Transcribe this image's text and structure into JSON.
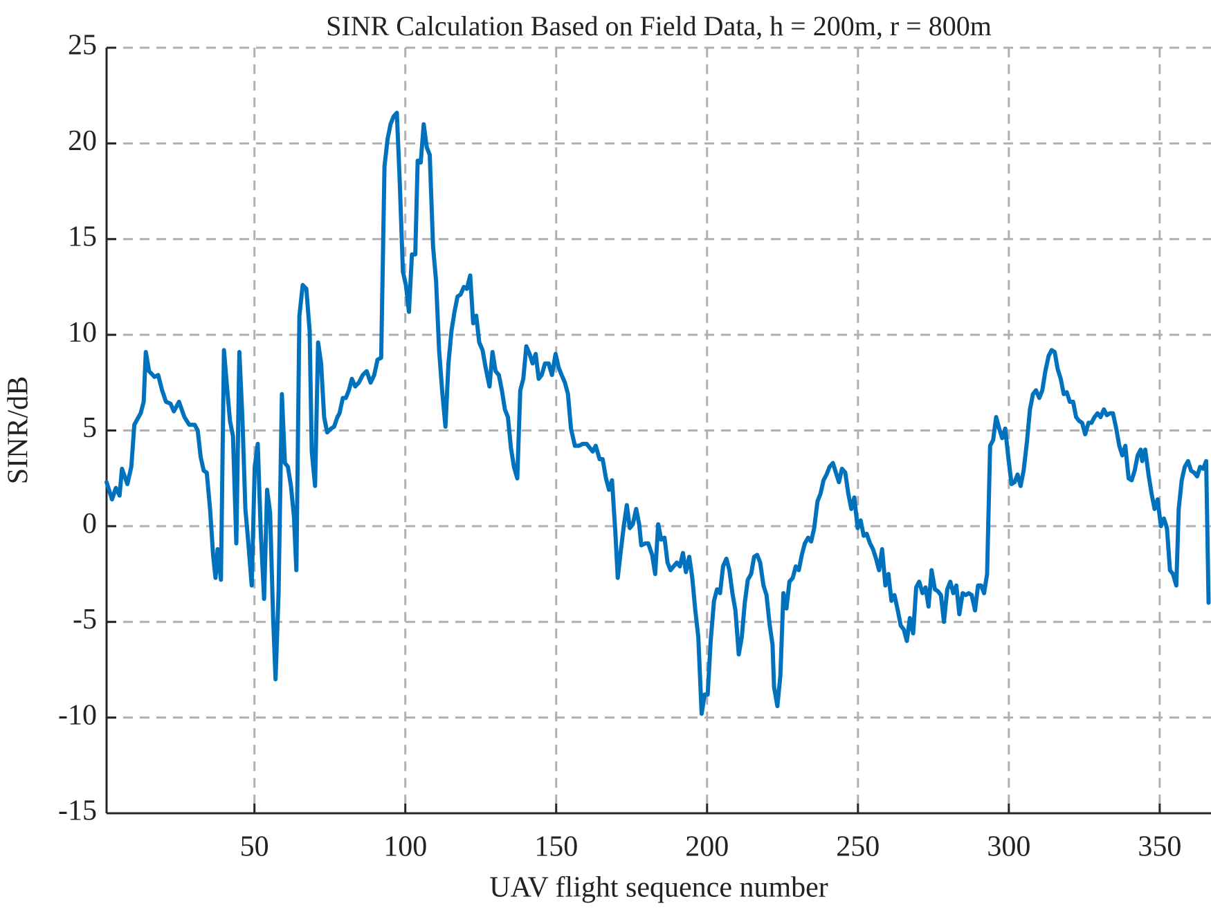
{
  "chart_data": {
    "type": "line",
    "title": "SINR Calculation Based on Field Data, h = 200m, r = 800m",
    "x_label": "UAV flight sequence number",
    "y_label": "SINR/dB",
    "color": "#0072bd",
    "grid": true,
    "xlim": [
      1,
      367
    ],
    "ylim": [
      -15,
      25
    ],
    "xticks": [
      50,
      100,
      150,
      200,
      250,
      300,
      350
    ],
    "yticks": [
      -15,
      -10,
      -5,
      0,
      5,
      10,
      15,
      20,
      25
    ],
    "x": [
      1,
      2.8,
      4.1,
      5.3,
      6.1,
      7.9,
      9.2,
      10.2,
      12.3,
      13.3,
      14.0,
      15.1,
      16.9,
      18.1,
      19.4,
      20.7,
      22.2,
      23.3,
      25.0,
      26.8,
      28.4,
      30.2,
      31.2,
      32.2,
      33.2,
      34.2,
      35.3,
      36.3,
      37.1,
      37.8,
      38.9,
      39.9,
      40.9,
      41.9,
      42.9,
      44.0,
      45.0,
      46.0,
      47.0,
      48.1,
      49.1,
      50.1,
      51.1,
      52.1,
      53.2,
      54.2,
      55.2,
      56.2,
      57.0,
      58.0,
      59.1,
      60.1,
      61.1,
      62.1,
      63.1,
      63.9,
      64.9,
      66.0,
      67.2,
      68.3,
      69.0,
      70.1,
      71.1,
      72.1,
      73.1,
      74.1,
      75.4,
      76.4,
      77.5,
      78.2,
      79.3,
      80.3,
      81.3,
      82.3,
      83.4,
      84.6,
      85.9,
      87.2,
      88.5,
      89.7,
      90.8,
      92.0,
      93.1,
      94.1,
      95.1,
      96.1,
      97.2,
      98.2,
      99.2,
      100.2,
      101.2,
      102.2,
      103.3,
      104.1,
      105.1,
      106.1,
      107.1,
      108.1,
      109.2,
      110.2,
      111.2,
      112.2,
      113.3,
      114.3,
      115.3,
      116.3,
      117.3,
      118.3,
      119.4,
      120.4,
      121.5,
      122.5,
      123.5,
      124.5,
      125.6,
      126.6,
      127.9,
      128.9,
      129.9,
      131.0,
      132.0,
      133.0,
      134.0,
      135.0,
      136.0,
      137.1,
      138.1,
      139.1,
      140.1,
      141.2,
      142.2,
      143.2,
      144.2,
      145.2,
      146.3,
      147.5,
      148.6,
      149.8,
      150.8,
      151.8,
      152.9,
      153.9,
      154.9,
      156.2,
      157.5,
      158.8,
      160.1,
      161.1,
      162.1,
      163.1,
      164.4,
      165.4,
      166.5,
      167.5,
      168.5,
      169.6,
      170.4,
      171.4,
      172.4,
      173.4,
      174.4,
      175.4,
      176.5,
      177.5,
      178.2,
      179.5,
      180.5,
      181.8,
      182.8,
      183.8,
      184.8,
      185.9,
      186.9,
      187.9,
      188.9,
      190.0,
      191.0,
      192.0,
      193.0,
      194.1,
      195.1,
      196.1,
      197.1,
      198.2,
      199.2,
      200.2,
      201.2,
      202.3,
      203.3,
      204.3,
      205.3,
      206.4,
      207.4,
      208.4,
      209.4,
      210.5,
      211.5,
      212.5,
      213.5,
      214.6,
      215.6,
      216.6,
      217.6,
      218.7,
      219.7,
      220.7,
      221.7,
      222.2,
      223.3,
      224.3,
      225.3,
      226.3,
      227.3,
      228.4,
      229.4,
      230.4,
      231.4,
      232.4,
      233.5,
      234.5,
      235.5,
      236.6,
      237.6,
      238.6,
      239.6,
      240.6,
      241.7,
      242.7,
      243.7,
      244.7,
      245.8,
      246.8,
      247.8,
      248.8,
      249.9,
      250.9,
      251.9,
      252.9,
      254.0,
      255.0,
      256.0,
      257.0,
      258.0,
      259.1,
      260.1,
      261.1,
      262.1,
      263.2,
      264.2,
      265.2,
      266.2,
      267.2,
      268.3,
      269.3,
      270.3,
      271.4,
      272.4,
      273.4,
      274.4,
      275.5,
      276.5,
      277.5,
      278.5,
      279.6,
      280.6,
      281.6,
      282.6,
      283.6,
      284.7,
      285.7,
      286.7,
      287.7,
      288.8,
      289.8,
      290.8,
      291.8,
      292.8,
      293.8,
      294.8,
      295.8,
      296.8,
      297.8,
      298.8,
      299.9,
      300.9,
      301.9,
      302.9,
      303.9,
      304.9,
      306.0,
      307.0,
      308.0,
      309.0,
      310.1,
      311.1,
      312.1,
      313.2,
      314.2,
      315.2,
      316.2,
      317.2,
      318.2,
      319.2,
      320.2,
      321.3,
      322.3,
      323.3,
      324.3,
      325.3,
      326.4,
      327.4,
      328.4,
      329.4,
      330.4,
      331.5,
      332.5,
      333.5,
      334.5,
      335.6,
      336.6,
      337.6,
      338.6,
      339.7,
      340.7,
      341.7,
      342.7,
      343.7,
      344.2,
      345.2,
      346.3,
      347.3,
      348.3,
      349.3,
      350.4,
      351.4,
      352.4,
      353.4,
      354.4,
      355.5,
      356.3,
      357.3,
      358.3,
      359.4,
      360.4,
      361.4,
      362.4,
      363.4,
      364.4,
      365.4,
      366.2
    ],
    "values": [
      2.3,
      1.4,
      2.0,
      1.6,
      3.0,
      2.2,
      3.1,
      5.3,
      5.9,
      6.5,
      9.1,
      8.1,
      7.8,
      7.9,
      7.1,
      6.5,
      6.4,
      6.0,
      6.5,
      5.7,
      5.3,
      5.3,
      5.0,
      3.6,
      2.9,
      2.8,
      0.9,
      -1.5,
      -2.7,
      -1.2,
      -2.8,
      9.2,
      7.3,
      5.5,
      4.7,
      -0.9,
      9.1,
      5.7,
      0.9,
      -1.1,
      -3.1,
      3.1,
      4.3,
      -0.3,
      -3.8,
      1.9,
      0.7,
      -4.8,
      -8.0,
      -3.5,
      6.9,
      3.3,
      3.1,
      2.1,
      0.5,
      -2.3,
      11.0,
      12.6,
      12.4,
      10.2,
      3.9,
      2.1,
      9.6,
      8.5,
      5.7,
      4.9,
      5.1,
      5.2,
      5.7,
      5.9,
      6.7,
      6.7,
      7.1,
      7.7,
      7.3,
      7.5,
      7.9,
      8.1,
      7.5,
      7.9,
      8.7,
      8.8,
      18.8,
      20.2,
      21.0,
      21.4,
      21.6,
      17.8,
      13.3,
      12.6,
      11.2,
      14.2,
      14.2,
      19.1,
      19.0,
      21.0,
      19.8,
      19.4,
      14.6,
      12.8,
      9.2,
      7.1,
      5.2,
      8.5,
      10.2,
      11.2,
      12.0,
      12.1,
      12.5,
      12.4,
      13.1,
      10.6,
      11.0,
      9.6,
      9.2,
      8.3,
      7.3,
      9.1,
      8.1,
      7.9,
      7.1,
      6.1,
      5.7,
      4.1,
      3.1,
      2.5,
      7.1,
      7.7,
      9.4,
      9.0,
      8.5,
      9.0,
      7.7,
      7.9,
      8.5,
      8.5,
      7.9,
      9.0,
      8.3,
      7.9,
      7.5,
      6.9,
      5.1,
      4.2,
      4.2,
      4.3,
      4.3,
      4.1,
      3.9,
      4.2,
      3.5,
      3.5,
      2.5,
      1.9,
      2.4,
      -0.3,
      -2.7,
      -1.3,
      0.0,
      1.1,
      -0.1,
      0.1,
      0.9,
      0.1,
      -1.0,
      -0.9,
      -0.9,
      -1.5,
      -2.5,
      0.1,
      -0.7,
      -0.6,
      -1.9,
      -2.3,
      -2.1,
      -1.9,
      -2.1,
      -1.4,
      -2.4,
      -1.6,
      -2.7,
      -4.4,
      -5.8,
      -9.8,
      -8.8,
      -8.8,
      -6.0,
      -3.9,
      -3.3,
      -3.5,
      -2.1,
      -1.7,
      -2.3,
      -3.5,
      -4.4,
      -6.7,
      -5.8,
      -4.0,
      -2.8,
      -2.5,
      -1.6,
      -1.5,
      -1.9,
      -3.1,
      -3.6,
      -5.1,
      -6.2,
      -8.4,
      -9.4,
      -7.8,
      -3.5,
      -4.3,
      -2.9,
      -2.7,
      -2.1,
      -2.3,
      -1.5,
      -0.9,
      -0.6,
      -0.8,
      -0.1,
      1.3,
      1.7,
      2.4,
      2.7,
      3.1,
      3.3,
      2.8,
      2.3,
      3.0,
      2.8,
      1.7,
      0.9,
      1.5,
      -0.1,
      0.3,
      -0.5,
      -0.4,
      -0.9,
      -1.2,
      -1.7,
      -2.3,
      -1.2,
      -3.1,
      -2.5,
      -3.9,
      -3.6,
      -4.4,
      -5.2,
      -5.4,
      -6.0,
      -4.8,
      -5.6,
      -3.2,
      -2.9,
      -3.5,
      -3.2,
      -4.2,
      -2.3,
      -3.3,
      -3.4,
      -3.6,
      -5.0,
      -3.3,
      -2.9,
      -3.5,
      -3.1,
      -4.6,
      -3.5,
      -3.6,
      -3.5,
      -3.6,
      -4.4,
      -3.1,
      -3.1,
      -3.5,
      -2.5,
      4.2,
      4.5,
      5.7,
      5.1,
      4.6,
      5.1,
      3.5,
      2.2,
      2.3,
      2.7,
      2.1,
      2.9,
      4.4,
      6.1,
      6.9,
      7.1,
      6.7,
      7.1,
      8.1,
      8.9,
      9.2,
      9.1,
      8.2,
      7.7,
      6.9,
      7.0,
      6.5,
      6.5,
      5.7,
      5.5,
      5.4,
      4.8,
      5.4,
      5.4,
      5.7,
      5.9,
      5.7,
      6.1,
      5.8,
      5.9,
      5.9,
      5.1,
      4.2,
      3.7,
      4.2,
      2.5,
      2.4,
      2.9,
      3.7,
      4.0,
      3.4,
      4.0,
      2.7,
      1.7,
      0.9,
      1.4,
      0.0,
      0.4,
      -0.1,
      -2.3,
      -2.5,
      -3.1,
      0.9,
      2.4,
      3.1,
      3.4,
      2.9,
      2.8,
      2.6,
      3.1,
      3.0,
      3.4,
      -4.0
    ]
  }
}
